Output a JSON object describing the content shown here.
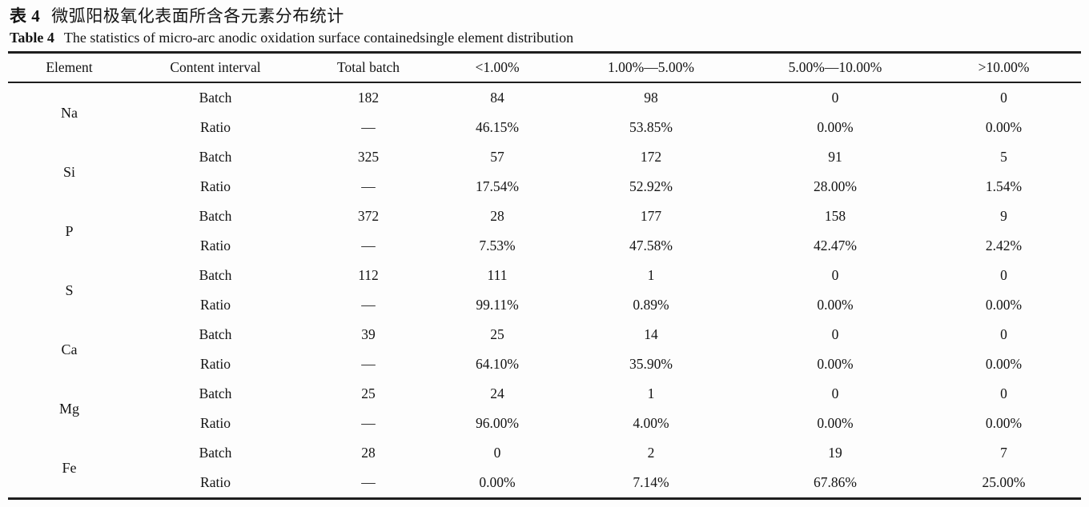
{
  "title": {
    "zh_label": "表 4",
    "zh_text": "微弧阳极氧化表面所含各元素分布统计",
    "en_label": "Table 4",
    "en_text": "The statistics of micro-arc anodic oxidation surface containedsingle element distribution"
  },
  "table": {
    "headers": [
      "Element",
      "Content interval",
      "Total batch",
      "<1.00%",
      "1.00%—5.00%",
      "5.00%—10.00%",
      ">10.00%"
    ],
    "rows": [
      {
        "element": "Na",
        "batch": [
          "Batch",
          "182",
          "84",
          "98",
          "0",
          "0"
        ],
        "ratio": [
          "Ratio",
          "—",
          "46.15%",
          "53.85%",
          "0.00%",
          "0.00%"
        ]
      },
      {
        "element": "Si",
        "batch": [
          "Batch",
          "325",
          "57",
          "172",
          "91",
          "5"
        ],
        "ratio": [
          "Ratio",
          "—",
          "17.54%",
          "52.92%",
          "28.00%",
          "1.54%"
        ]
      },
      {
        "element": "P",
        "batch": [
          "Batch",
          "372",
          "28",
          "177",
          "158",
          "9"
        ],
        "ratio": [
          "Ratio",
          "—",
          "7.53%",
          "47.58%",
          "42.47%",
          "2.42%"
        ]
      },
      {
        "element": "S",
        "batch": [
          "Batch",
          "112",
          "111",
          "1",
          "0",
          "0"
        ],
        "ratio": [
          "Ratio",
          "—",
          "99.11%",
          "0.89%",
          "0.00%",
          "0.00%"
        ]
      },
      {
        "element": "Ca",
        "batch": [
          "Batch",
          "39",
          "25",
          "14",
          "0",
          "0"
        ],
        "ratio": [
          "Ratio",
          "—",
          "64.10%",
          "35.90%",
          "0.00%",
          "0.00%"
        ]
      },
      {
        "element": "Mg",
        "batch": [
          "Batch",
          "25",
          "24",
          "1",
          "0",
          "0"
        ],
        "ratio": [
          "Ratio",
          "—",
          "96.00%",
          "4.00%",
          "0.00%",
          "0.00%"
        ]
      },
      {
        "element": "Fe",
        "batch": [
          "Batch",
          "28",
          "0",
          "2",
          "19",
          "7"
        ],
        "ratio": [
          "Ratio",
          "—",
          "0.00%",
          "7.14%",
          "67.86%",
          "25.00%"
        ]
      }
    ]
  },
  "colors": {
    "text": "#141414",
    "rule": "#1e1e1e",
    "background": "#fdfdfd"
  }
}
